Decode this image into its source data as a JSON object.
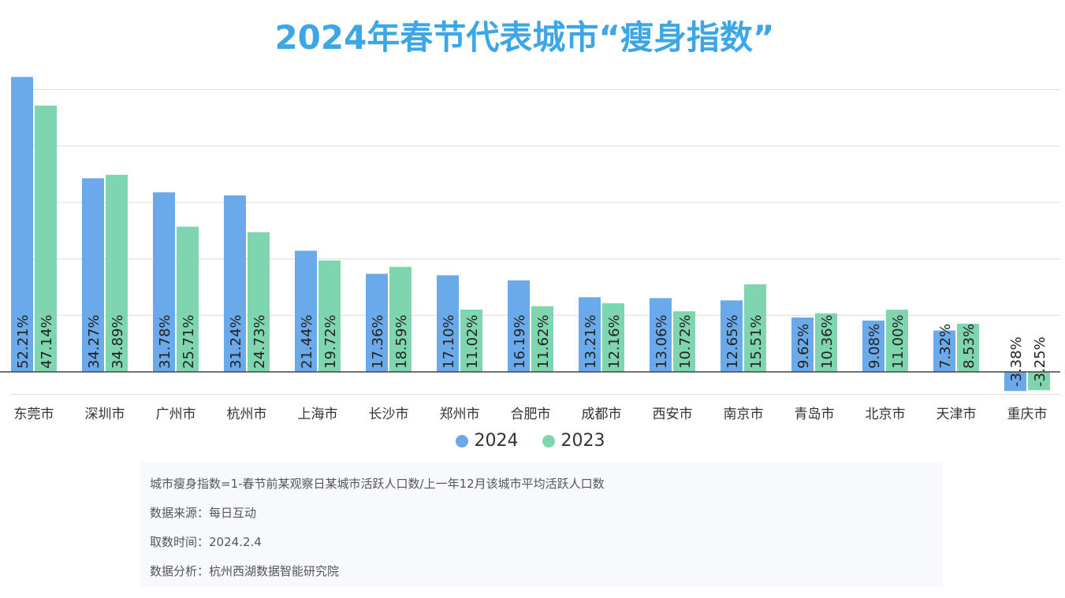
{
  "title": "2024年春节代表城市“瘦身指数”",
  "colors": {
    "series_2024": "#6aa9ea",
    "series_2023": "#7fd6ae",
    "title": "#3da6e4"
  },
  "legend": {
    "label_2024": "2024",
    "label_2023": "2023"
  },
  "notes": {
    "definition": "城市瘦身指数=1-春节前某观察日某城市活跃人口数/上一年12月该城市平均活跃人口数",
    "source": "数据来源：每日互动",
    "date": "取数时间：2024.2.4",
    "analysis": "数据分析：杭州西湖数据智能研究院"
  },
  "chart_data": {
    "type": "bar",
    "categories": [
      "东莞市",
      "深圳市",
      "广州市",
      "杭州市",
      "上海市",
      "长沙市",
      "郑州市",
      "合肥市",
      "成都市",
      "西安市",
      "南京市",
      "青岛市",
      "北京市",
      "天津市",
      "重庆市"
    ],
    "series": [
      {
        "name": "2024",
        "values": [
          52.21,
          34.27,
          31.78,
          31.24,
          21.44,
          17.36,
          17.1,
          16.19,
          13.21,
          13.06,
          12.65,
          9.62,
          9.08,
          7.32,
          -3.38
        ]
      },
      {
        "name": "2023",
        "values": [
          47.14,
          34.89,
          25.71,
          24.73,
          19.72,
          18.59,
          11.02,
          11.62,
          12.16,
          10.72,
          15.51,
          10.36,
          11.0,
          8.53,
          -3.25
        ]
      }
    ],
    "data_labels": {
      "2024": [
        "52.21%",
        "34.27%",
        "31.78%",
        "31.24%",
        "21.44%",
        "17.36%",
        "17.10%",
        "16.19%",
        "13.21%",
        "13.06%",
        "12.65%",
        "9.62%",
        "9.08%",
        "7.32%",
        "-3.38%"
      ],
      "2023": [
        "47.14%",
        "34.89%",
        "25.71%",
        "24.73%",
        "19.72%",
        "18.59%",
        "11.02%",
        "11.62%",
        "12.16%",
        "10.72%",
        "15.51%",
        "10.36%",
        "11.00%",
        "8.53%",
        "-3.25%"
      ]
    },
    "ylim": [
      -4,
      52
    ],
    "grid": true,
    "legend_position": "bottom-center"
  }
}
